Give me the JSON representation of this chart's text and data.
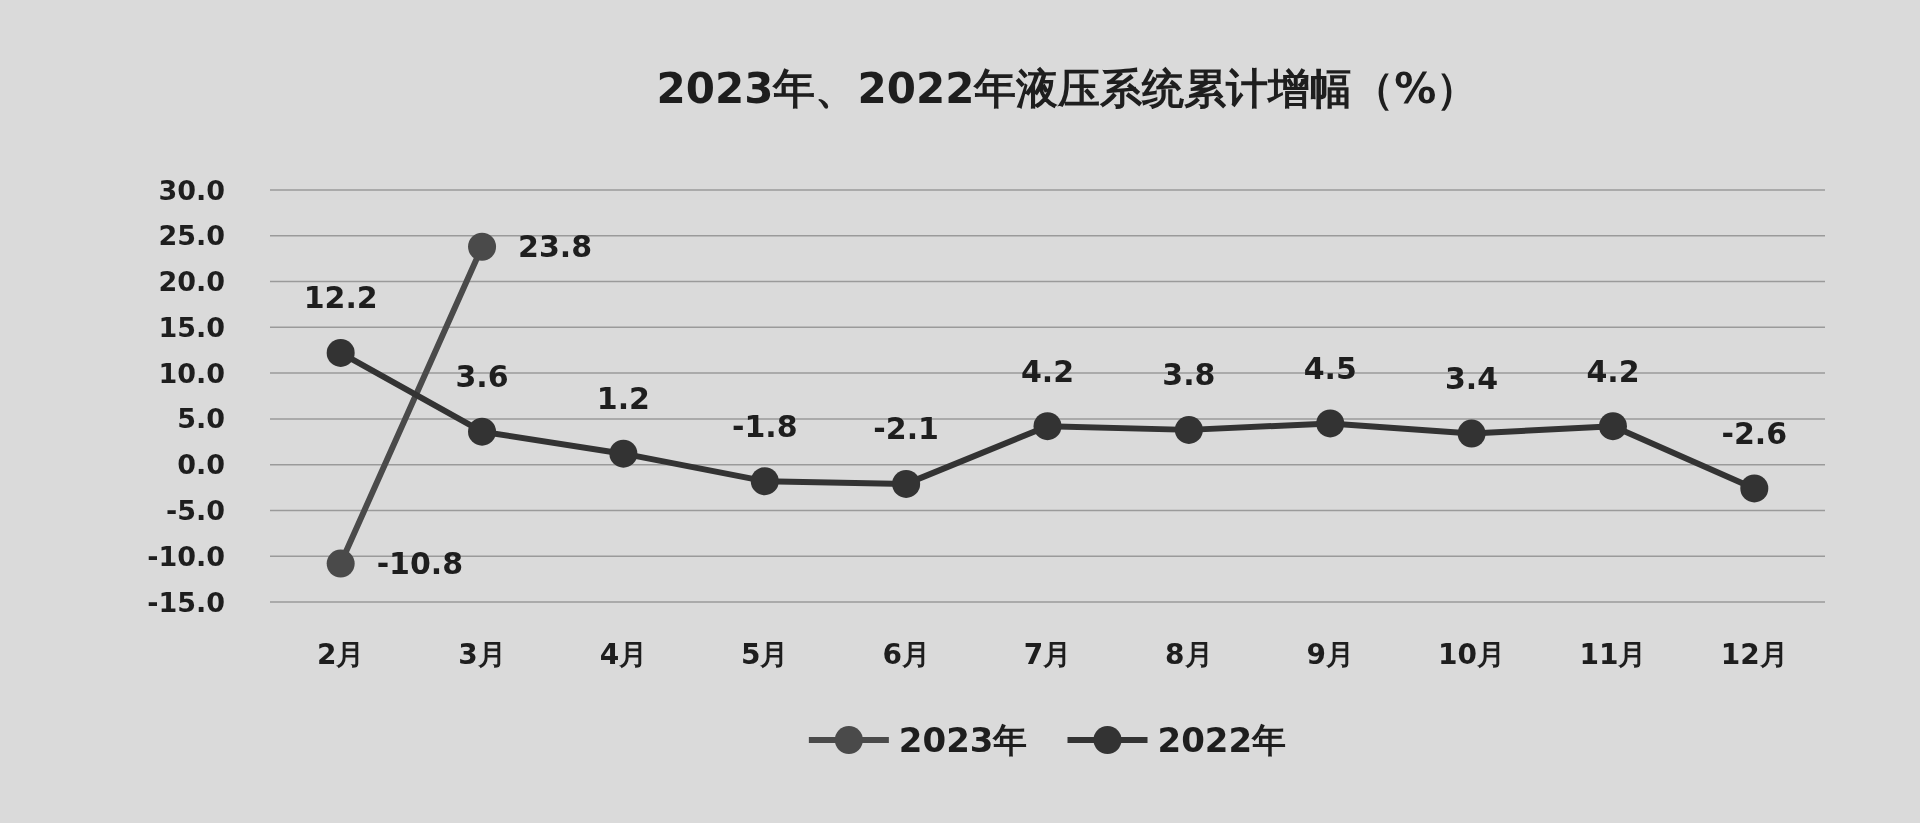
{
  "chart_data": {
    "type": "line",
    "title": "2023年、2022年液压系统累计增幅（%）",
    "categories": [
      "2月",
      "3月",
      "4月",
      "5月",
      "6月",
      "7月",
      "8月",
      "9月",
      "10月",
      "11月",
      "12月"
    ],
    "series": [
      {
        "name": "2023年",
        "color": "#4a4a4a",
        "values": [
          -10.8,
          23.8,
          null,
          null,
          null,
          null,
          null,
          null,
          null,
          null,
          null
        ]
      },
      {
        "name": "2022年",
        "color": "#333333",
        "values": [
          12.2,
          3.6,
          1.2,
          -1.8,
          -2.1,
          4.2,
          3.8,
          4.5,
          3.4,
          4.2,
          -2.6
        ]
      }
    ],
    "ylim": [
      -15,
      30
    ],
    "yticks": [
      {
        "value": -15,
        "label": "-15.0"
      },
      {
        "value": -10,
        "label": "-10.0"
      },
      {
        "value": -5,
        "label": "-5.0"
      },
      {
        "value": 0,
        "label": "0.0"
      },
      {
        "value": 5,
        "label": "5.0"
      },
      {
        "value": 10,
        "label": "10.0"
      },
      {
        "value": 15,
        "label": "15.0"
      },
      {
        "value": 20,
        "label": "20.0"
      },
      {
        "value": 25,
        "label": "25.0"
      },
      {
        "value": 30,
        "label": "30.0"
      }
    ],
    "grid": "y",
    "legend": "bottom",
    "marker": "circle",
    "line_style": "solid",
    "data_labels": true
  }
}
